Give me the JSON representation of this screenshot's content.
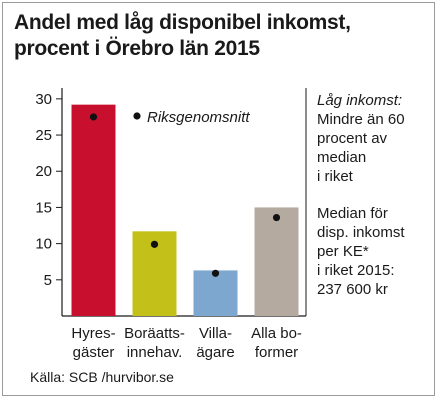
{
  "title_lines": [
    "Andel med låg disponibel inkomst,",
    "procent i Örebro län 2015"
  ],
  "chart_data": {
    "type": "bar",
    "categories": [
      [
        "Hyres-",
        "gäster"
      ],
      [
        "Boräatts-",
        "innehav."
      ],
      [
        "Villa-",
        "ägare"
      ],
      [
        "Alla bo-",
        "former"
      ]
    ],
    "series": [
      {
        "name": "",
        "values": [
          29.2,
          11.7,
          6.3,
          15.0
        ],
        "colors": [
          "#c8102e",
          "#c3c01a",
          "#7ea7d0",
          "#b5aaa0"
        ]
      },
      {
        "name": "Riksgenomsnitt",
        "values": [
          27.5,
          9.9,
          5.9,
          13.6
        ],
        "marker": "dot"
      }
    ],
    "yticks": [
      5,
      10,
      15,
      20,
      25,
      30
    ],
    "ylim": [
      0,
      31.5
    ],
    "legend": {
      "label": "Riksgenomsnitt",
      "placement": "top-center"
    },
    "grid": false
  },
  "note": {
    "definition_heading": "Låg inkomst:",
    "definition_lines": [
      "Mindre än 60",
      "procent av",
      "median",
      "i riket"
    ],
    "median_lines": [
      "Median för",
      "disp. inkomst",
      "per KE*",
      "i riket 2015:",
      "237 600 kr"
    ]
  },
  "source": "Källa: SCB /hurvibor.se",
  "colors": {
    "axis": "#1a1a1a",
    "dot": "#111111",
    "frame": "#9a9a9a"
  }
}
